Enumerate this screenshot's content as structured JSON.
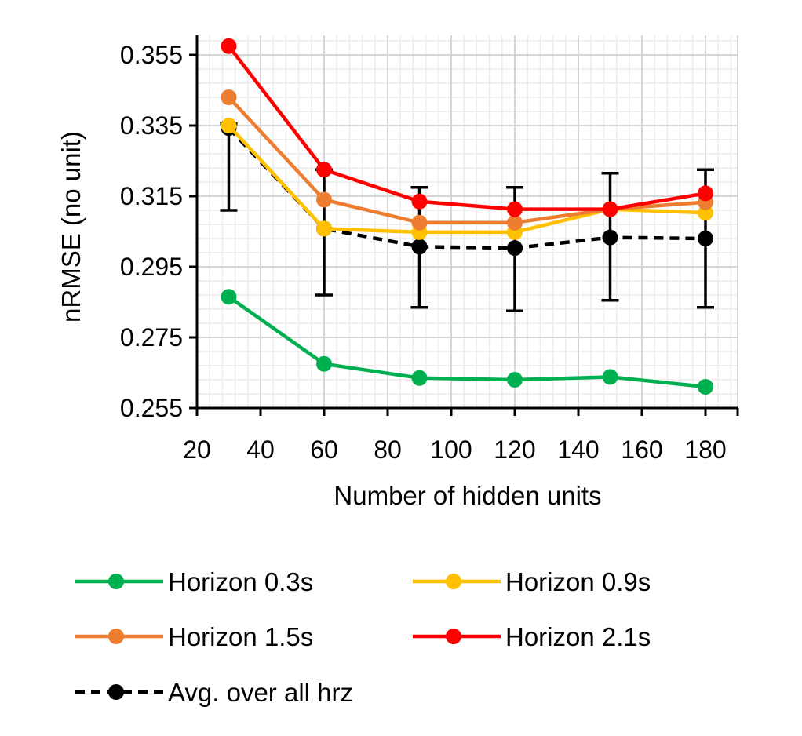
{
  "chart_data": {
    "type": "line",
    "title": "",
    "xlabel": "Number of hidden units",
    "ylabel": "nRMSE (no unit)",
    "xlim": [
      20,
      190
    ],
    "ylim": [
      0.255,
      0.359
    ],
    "xticks": [
      20,
      40,
      60,
      80,
      100,
      120,
      140,
      160,
      180
    ],
    "yticks": [
      0.255,
      0.275,
      0.295,
      0.315,
      0.335,
      0.355
    ],
    "ytick_labels": [
      "0.255",
      "0.275",
      "0.295",
      "0.315",
      "0.335",
      "0.355"
    ],
    "x": [
      30,
      60,
      90,
      120,
      150,
      180
    ],
    "grid": true,
    "legend_position": "bottom",
    "series": [
      {
        "name": "Horizon 0.3s",
        "color": "#00b050",
        "dashed": false,
        "values": [
          0.2865,
          0.2675,
          0.2635,
          0.263,
          0.2638,
          0.261
        ]
      },
      {
        "name": "Horizon 0.9s",
        "color": "#ffc000",
        "dashed": false,
        "values": [
          0.335,
          0.3058,
          0.3048,
          0.3048,
          0.3113,
          0.3103
        ]
      },
      {
        "name": "Horizon 1.5s",
        "color": "#ed7d31",
        "dashed": false,
        "values": [
          0.343,
          0.314,
          0.3075,
          0.3075,
          0.3113,
          0.3133
        ]
      },
      {
        "name": "Horizon 2.1s",
        "color": "#ff0000",
        "dashed": false,
        "values": [
          0.3575,
          0.3225,
          0.3135,
          0.3113,
          0.3113,
          0.3158
        ]
      },
      {
        "name": "Avg. over all hrz",
        "color": "#000000",
        "dashed": true,
        "values": [
          0.3343,
          0.3058,
          0.3007,
          0.3003,
          0.3033,
          0.303
        ],
        "error_low": [
          0.311,
          0.287,
          0.2835,
          0.2825,
          0.2855,
          0.2835
        ],
        "error_high": [
          0.3355,
          0.3225,
          0.3175,
          0.3175,
          0.3215,
          0.3225
        ]
      }
    ]
  }
}
